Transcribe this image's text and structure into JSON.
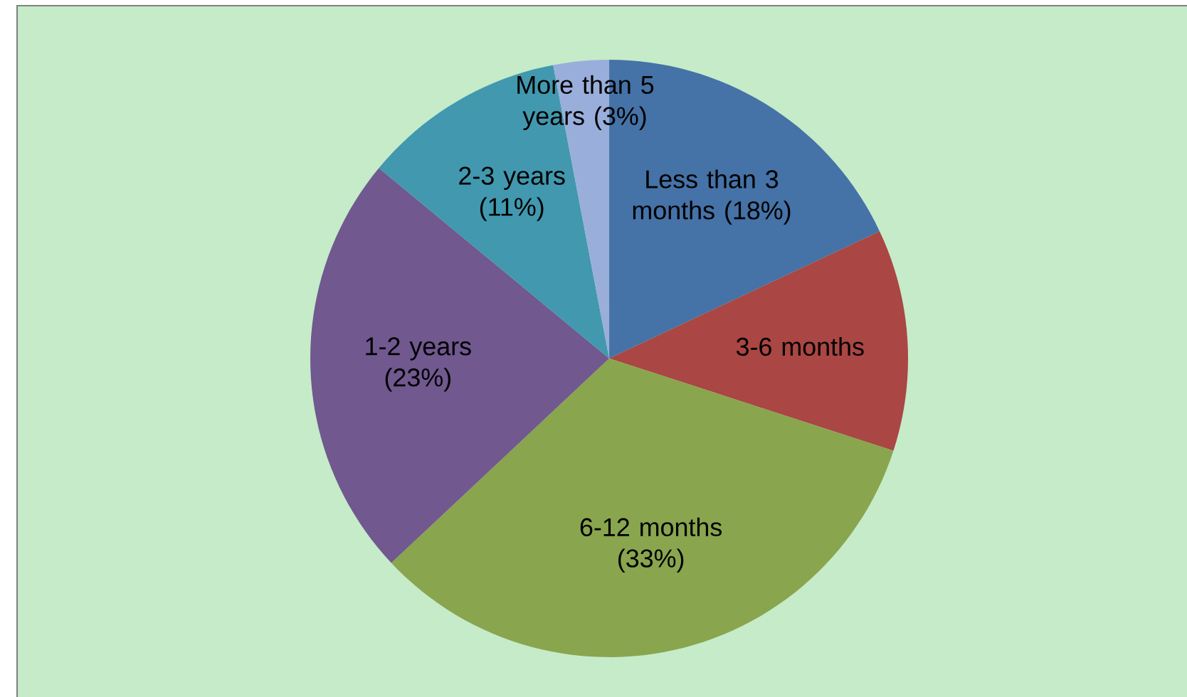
{
  "chart_data": {
    "type": "pie",
    "categories": [
      "Less than 3 months (18%)",
      "3-6 months",
      "6-12 months (33%)",
      "1-2 years (23%)",
      "2-3 years (11%)",
      "More than 5 years (3%)"
    ],
    "values": [
      18,
      12,
      33,
      23,
      11,
      3
    ],
    "colors": [
      "#4572a7",
      "#aa4643",
      "#89a54e",
      "#71588f",
      "#4198af",
      "#9aaedb"
    ]
  }
}
